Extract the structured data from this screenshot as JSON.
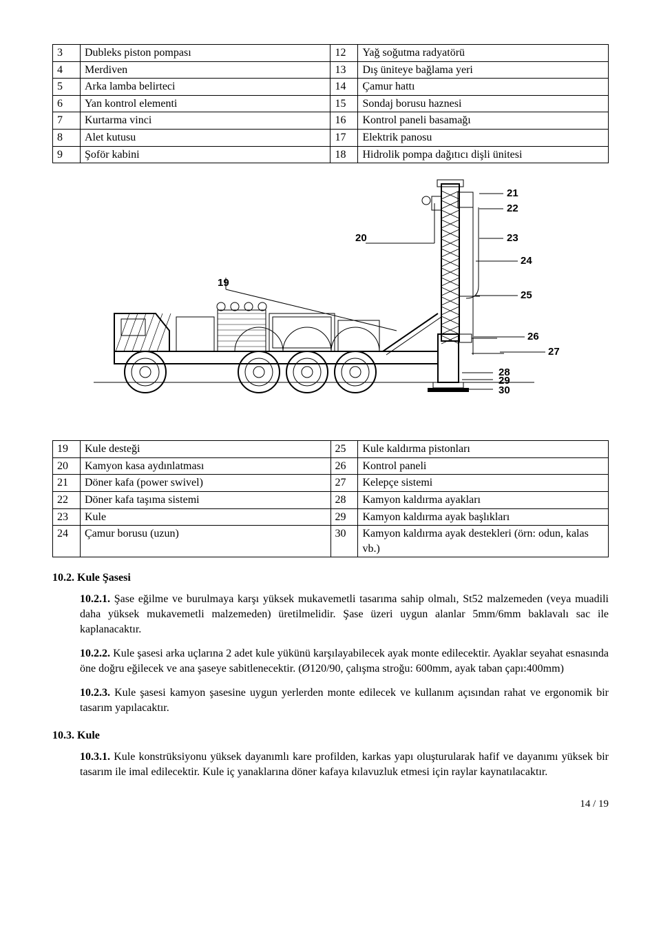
{
  "table1": {
    "rows": [
      [
        "3",
        "Dubleks piston pompası",
        "12",
        "Yağ soğutma radyatörü"
      ],
      [
        "4",
        "Merdiven",
        "13",
        "Dış üniteye bağlama yeri"
      ],
      [
        "5",
        "Arka lamba belirteci",
        "14",
        "Çamur hattı"
      ],
      [
        "6",
        "Yan kontrol elementi",
        "15",
        "Sondaj borusu haznesi"
      ],
      [
        "7",
        "Kurtarma vinci",
        "16",
        "Kontrol paneli basamağı"
      ],
      [
        "8",
        "Alet kutusu",
        "17",
        "Elektrik panosu"
      ],
      [
        "9",
        "Şoför kabini",
        "18",
        "Hidrolik pompa dağıtıcı dişli ünitesi"
      ]
    ]
  },
  "diagram": {
    "labels": [
      "19",
      "20",
      "21",
      "22",
      "23",
      "24",
      "25",
      "26",
      "27",
      "28",
      "29",
      "30"
    ]
  },
  "table2": {
    "rows": [
      [
        "19",
        "Kule desteği",
        "25",
        "Kule kaldırma pistonları"
      ],
      [
        "20",
        "Kamyon kasa aydınlatması",
        "26",
        "Kontrol paneli"
      ],
      [
        "21",
        "Döner kafa (power swivel)",
        "27",
        "Kelepçe sistemi"
      ],
      [
        "22",
        "Döner kafa taşıma sistemi",
        "28",
        "Kamyon kaldırma ayakları"
      ],
      [
        "23",
        "Kule",
        "29",
        "Kamyon kaldırma ayak başlıkları"
      ],
      [
        "24",
        "Çamur borusu (uzun)",
        "30",
        "Kamyon kaldırma ayak destekleri (örn: odun, kalas vb.)"
      ]
    ]
  },
  "sec102": {
    "title": "10.2. Kule Şasesi",
    "p1_num": "10.2.1.",
    "p1": " Şase eğilme ve burulmaya karşı yüksek mukavemetli tasarıma sahip olmalı,   St52 malzemeden (veya muadili daha yüksek mukavemetli malzemeden) üretilmelidir. Şase üzeri uygun alanlar 5mm/6mm baklavalı sac ile kaplanacaktır.",
    "p2_num": "10.2.2.",
    "p2": " Kule şasesi arka uçlarına 2 adet kule yükünü karşılayabilecek ayak monte edilecektir. Ayaklar seyahat esnasında öne doğru eğilecek ve ana şaseye sabitlenecektir. (Ø120/90, çalışma stroğu: 600mm, ayak taban çapı:400mm)",
    "p3_num": "10.2.3.",
    "p3": " Kule şasesi kamyon şasesine uygun yerlerden monte edilecek ve kullanım açısından rahat ve ergonomik bir tasarım yapılacaktır."
  },
  "sec103": {
    "title": "10.3. Kule",
    "p1_num": "10.3.1.",
    "p1": " Kule konstrüksiyonu yüksek dayanımlı kare profilden, karkas yapı oluşturularak hafif ve dayanımı yüksek bir tasarım ile imal edilecektir. Kule iç yanaklarına döner kafaya kılavuzluk etmesi için raylar kaynatılacaktır."
  },
  "footer": "14 / 19",
  "svg": {
    "stroke": "#000000",
    "stroke_thin": 1,
    "stroke_bold": 2,
    "font_label": "bold 15px Arial, sans-serif"
  }
}
